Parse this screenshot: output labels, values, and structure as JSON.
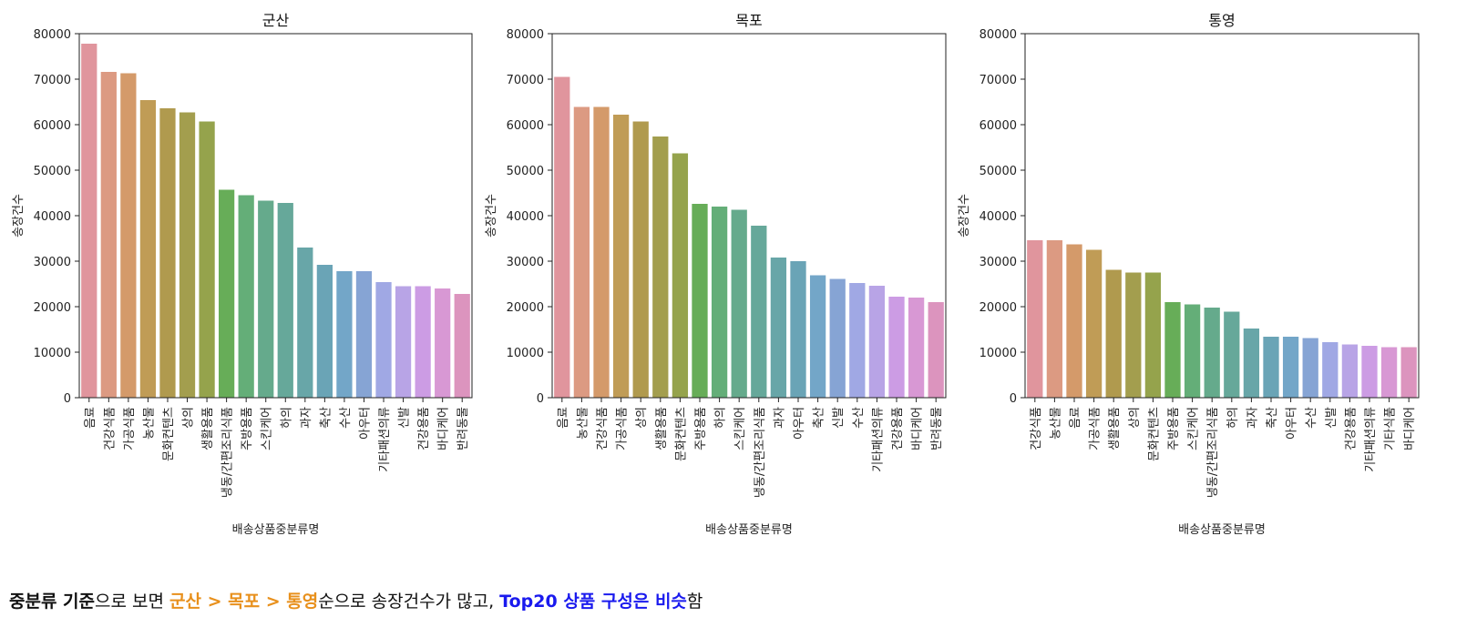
{
  "chart_data": [
    {
      "type": "bar",
      "title": "군산",
      "xlabel": "배송상품중분류명",
      "ylabel": "송장건수",
      "ylim": [
        0,
        80000
      ],
      "yticks": [
        "0",
        "10000",
        "20000",
        "30000",
        "40000",
        "50000",
        "60000",
        "70000",
        "80000"
      ],
      "categories": [
        "음료",
        "건강식품",
        "가공식품",
        "농산물",
        "문화컨텐츠",
        "상의",
        "생활용품",
        "냉동/간편조리식품",
        "주방용품",
        "스킨케어",
        "하의",
        "과자",
        "축산",
        "수산",
        "아우터",
        "기타패션의류",
        "신발",
        "건강용품",
        "바디케어",
        "반려동물"
      ],
      "values": [
        77800,
        71600,
        71300,
        65400,
        63600,
        62700,
        60700,
        45700,
        44500,
        43300,
        42800,
        33000,
        29200,
        27800,
        27800,
        25400,
        24500,
        24500,
        24000,
        22800
      ],
      "colors": [
        "#e0959d",
        "#dc9a82",
        "#d49a6a",
        "#c09c56",
        "#b09a4e",
        "#a39e4e",
        "#95a34c",
        "#67ad58",
        "#64ae78",
        "#65aa8c",
        "#66a89a",
        "#68a6a8",
        "#6aa4b6",
        "#73a6c8",
        "#86a4d4",
        "#a0a8e4",
        "#b8a4e6",
        "#cc9ce4",
        "#d898d4",
        "#dc94be"
      ],
      "grid": false
    },
    {
      "type": "bar",
      "title": "목포",
      "xlabel": "배송상품중분류명",
      "ylabel": "송장건수",
      "ylim": [
        0,
        80000
      ],
      "yticks": [
        "0",
        "10000",
        "20000",
        "30000",
        "40000",
        "50000",
        "60000",
        "70000",
        "80000"
      ],
      "categories": [
        "음료",
        "농산물",
        "건강식품",
        "가공식품",
        "상의",
        "생활용품",
        "문화컨텐츠",
        "주방용품",
        "하의",
        "스킨케어",
        "냉동/간편조리식품",
        "과자",
        "아우터",
        "축산",
        "신발",
        "수산",
        "기타패션의류",
        "건강용품",
        "바디케어",
        "반려동물"
      ],
      "values": [
        70500,
        63900,
        63900,
        62200,
        60700,
        57400,
        53700,
        42600,
        42000,
        41300,
        37800,
        30800,
        30000,
        26900,
        26100,
        25200,
        24600,
        22200,
        22000,
        21000
      ],
      "colors": [
        "#e0959d",
        "#dc9a82",
        "#d49a6a",
        "#c09c56",
        "#b09a4e",
        "#a39e4e",
        "#95a34c",
        "#67ad58",
        "#64ae78",
        "#65aa8c",
        "#66a89a",
        "#68a6a8",
        "#6aa4b6",
        "#73a6c8",
        "#86a4d4",
        "#a0a8e4",
        "#b8a4e6",
        "#cc9ce4",
        "#d898d4",
        "#dc94be"
      ],
      "grid": false
    },
    {
      "type": "bar",
      "title": "통영",
      "xlabel": "배송상품중분류명",
      "ylabel": "송장건수",
      "ylim": [
        0,
        80000
      ],
      "yticks": [
        "0",
        "10000",
        "20000",
        "30000",
        "40000",
        "50000",
        "60000",
        "70000",
        "80000"
      ],
      "categories": [
        "건강식품",
        "농산물",
        "음료",
        "가공식품",
        "생활용품",
        "상의",
        "문화컨텐츠",
        "주방용품",
        "스킨케어",
        "냉동/간편조리식품",
        "하의",
        "과자",
        "축산",
        "아우터",
        "수산",
        "신발",
        "건강용품",
        "기타패션의류",
        "기타식품",
        "바디케어"
      ],
      "values": [
        34600,
        34600,
        33700,
        32500,
        28100,
        27500,
        27500,
        21000,
        20500,
        19800,
        18900,
        15200,
        13400,
        13400,
        13100,
        12200,
        11700,
        11400,
        11100,
        11100
      ],
      "colors": [
        "#e0959d",
        "#dc9a82",
        "#d49a6a",
        "#c09c56",
        "#b09a4e",
        "#a39e4e",
        "#95a34c",
        "#67ad58",
        "#64ae78",
        "#65aa8c",
        "#66a89a",
        "#68a6a8",
        "#6aa4b6",
        "#73a6c8",
        "#86a4d4",
        "#a0a8e4",
        "#b8a4e6",
        "#cc9ce4",
        "#d898d4",
        "#dc94be"
      ],
      "grid": false
    }
  ],
  "caption": {
    "part1": "중분류 기준",
    "part2": "으로 보면 ",
    "part3": "군산 > 목포 > 통영",
    "part4": "순으로 송장건수가 많고, ",
    "part5": "Top20 상품 구성은 비슷",
    "part6": "함"
  }
}
